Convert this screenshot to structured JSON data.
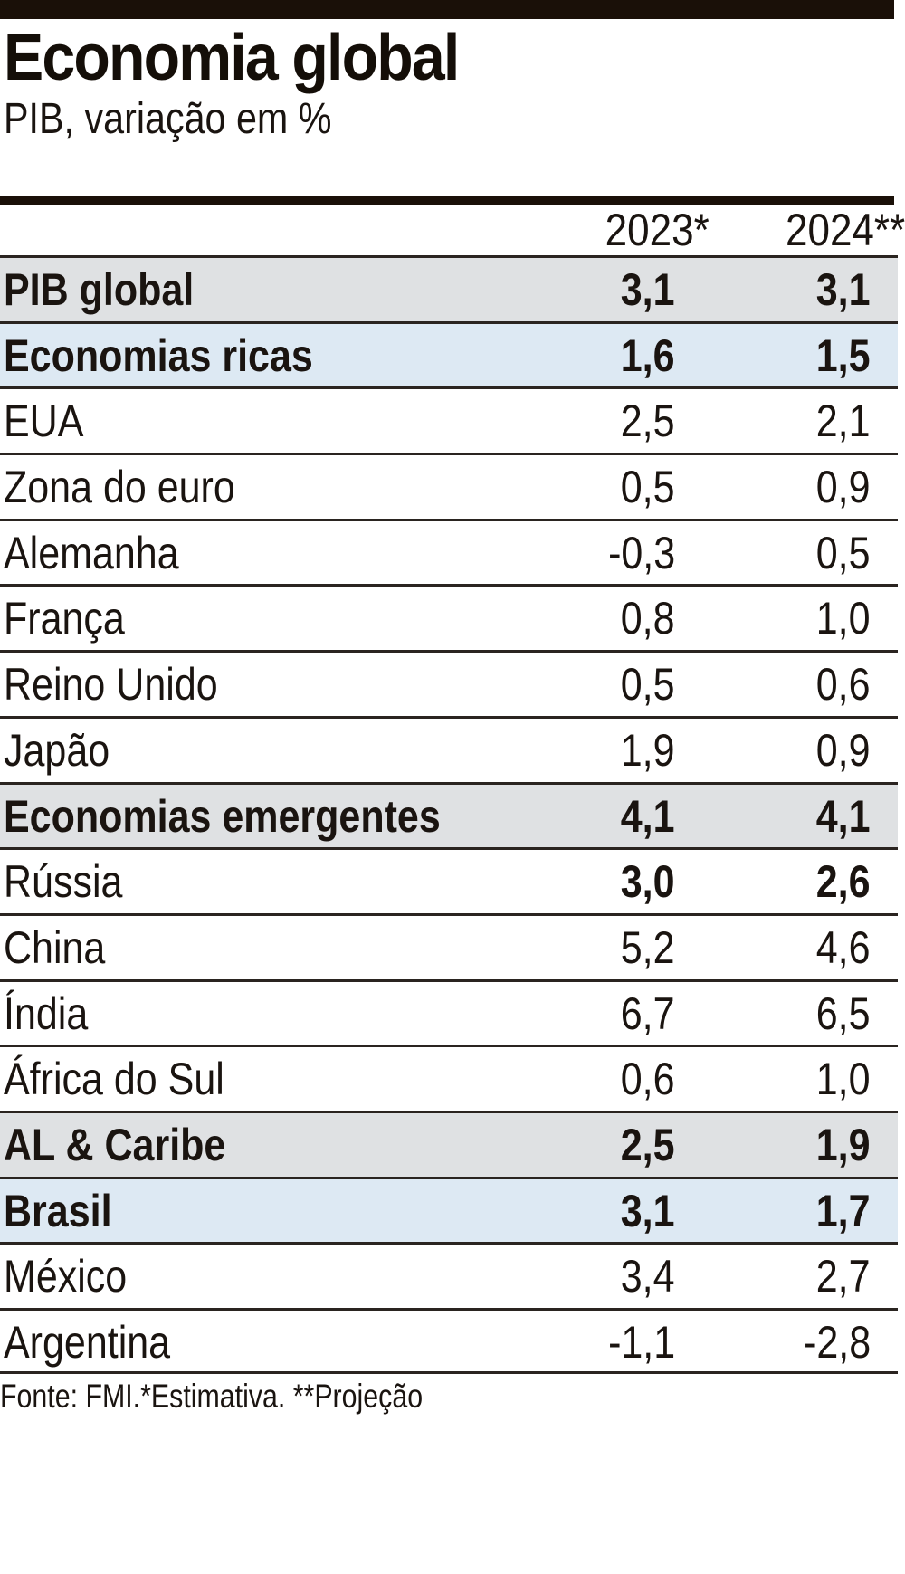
{
  "title": "Economia global",
  "subtitle": "PIB, variação em %",
  "columns": [
    "2023*",
    "2024**"
  ],
  "rows": [
    {
      "label": "PIB global",
      "v2023": "3,1",
      "v2024": "3,1",
      "style": "gray",
      "bold": true
    },
    {
      "label": "Economias ricas",
      "v2023": "1,6",
      "v2024": "1,5",
      "style": "blue",
      "bold": true
    },
    {
      "label": "EUA",
      "v2023": "2,5",
      "v2024": "2,1",
      "style": "white",
      "bold": false
    },
    {
      "label": "Zona do euro",
      "v2023": "0,5",
      "v2024": "0,9",
      "style": "white",
      "bold": false
    },
    {
      "label": "Alemanha",
      "v2023": "-0,3",
      "v2024": "0,5",
      "style": "white",
      "bold": false
    },
    {
      "label": "França",
      "v2023": "0,8",
      "v2024": "1,0",
      "style": "white",
      "bold": false
    },
    {
      "label": "Reino Unido",
      "v2023": "0,5",
      "v2024": "0,6",
      "style": "white",
      "bold": false
    },
    {
      "label": "Japão",
      "v2023": "1,9",
      "v2024": "0,9",
      "style": "white",
      "bold": false
    },
    {
      "label": "Economias emergentes",
      "v2023": "4,1",
      "v2024": "4,1",
      "style": "gray",
      "bold": true
    },
    {
      "label": "Rússia",
      "v2023": "3,0",
      "v2024": "2,6",
      "style": "white",
      "bold": false,
      "boldnum": true
    },
    {
      "label": "China",
      "v2023": "5,2",
      "v2024": "4,6",
      "style": "white",
      "bold": false
    },
    {
      "label": "Índia",
      "v2023": "6,7",
      "v2024": "6,5",
      "style": "white",
      "bold": false
    },
    {
      "label": "África do Sul",
      "v2023": "0,6",
      "v2024": "1,0",
      "style": "white",
      "bold": false
    },
    {
      "label": "AL & Caribe",
      "v2023": "2,5",
      "v2024": "1,9",
      "style": "gray",
      "bold": true
    },
    {
      "label": "Brasil",
      "v2023": "3,1",
      "v2024": "1,7",
      "style": "blue",
      "bold": true
    },
    {
      "label": "México",
      "v2023": "3,4",
      "v2024": "2,7",
      "style": "white",
      "bold": false
    },
    {
      "label": "Argentina",
      "v2023": "-1,1",
      "v2024": "-2,8",
      "style": "white",
      "bold": false
    }
  ],
  "footer": "Fonte: FMI.*Estimativa. **Projeção",
  "colors": {
    "rule": "#1a1008",
    "gray_row": "#dfe1e3",
    "blue_row": "#dde9f3"
  }
}
